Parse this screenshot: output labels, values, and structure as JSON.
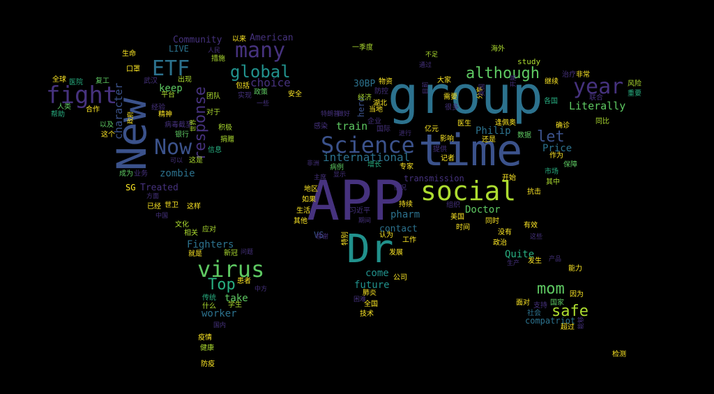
{
  "palette": {
    "background": "#000000",
    "dark_purple": "#46327e",
    "indigo": "#3b528b",
    "blue": "#365c8d",
    "teal_blue": "#2c728e",
    "teal": "#21918c",
    "green_teal": "#28ae80",
    "green": "#5ec962",
    "lime": "#addc30",
    "yellow": "#fde725",
    "deep": "#440154"
  },
  "words": [
    {
      "text": "APP",
      "color": "#46327e"
    },
    {
      "text": "group",
      "color": "#2c728e"
    },
    {
      "text": "time",
      "color": "#3b528b"
    },
    {
      "text": "New",
      "color": "#3b528b"
    },
    {
      "text": "Dr",
      "color": "#21918c"
    },
    {
      "text": "social",
      "color": "#addc30"
    },
    {
      "text": "fight",
      "color": "#46327e"
    },
    {
      "text": "Science",
      "color": "#3b528b"
    },
    {
      "text": "virus",
      "color": "#5ec962"
    },
    {
      "text": "year",
      "color": "#46327e"
    },
    {
      "text": "many",
      "color": "#46327e"
    },
    {
      "text": "ETF",
      "color": "#2c728e"
    },
    {
      "text": "Now",
      "color": "#3b528b"
    },
    {
      "text": "global",
      "color": "#21918c"
    },
    {
      "text": "although",
      "color": "#5ec962"
    },
    {
      "text": "safe",
      "color": "#addc30"
    },
    {
      "text": "mom",
      "color": "#5ec962"
    },
    {
      "text": "let",
      "color": "#3b528b"
    },
    {
      "text": "Top",
      "color": "#28ae80"
    },
    {
      "text": "response",
      "color": "#46327e"
    },
    {
      "text": "character",
      "color": "#3b528b"
    },
    {
      "text": "choice",
      "color": "#46327e"
    },
    {
      "text": "Literally",
      "color": "#5ec962"
    },
    {
      "text": "international",
      "color": "#2c728e"
    },
    {
      "text": "keep",
      "color": "#5ec962"
    },
    {
      "text": "train",
      "color": "#5ec962"
    },
    {
      "text": "Philip",
      "color": "#2c728e"
    },
    {
      "text": "Price",
      "color": "#2c728e"
    },
    {
      "text": "Doctor",
      "color": "#5ec962"
    },
    {
      "text": "zombie",
      "color": "#2c728e"
    },
    {
      "text": "future",
      "color": "#21918c"
    },
    {
      "text": "take",
      "color": "#5ec962"
    },
    {
      "text": "worker",
      "color": "#2c728e"
    },
    {
      "text": "Fighters",
      "color": "#2c728e"
    },
    {
      "text": "pharm",
      "color": "#2c728e"
    },
    {
      "text": "Quite",
      "color": "#28ae80"
    },
    {
      "text": "come",
      "color": "#21918c"
    },
    {
      "text": "contact",
      "color": "#2c728e"
    },
    {
      "text": "30BP",
      "color": "#2c728e"
    },
    {
      "text": "compatriot",
      "color": "#2c728e"
    },
    {
      "text": "transmission",
      "color": "#46327e"
    },
    {
      "text": "Community",
      "color": "#46327e"
    },
    {
      "text": "American",
      "color": "#46327e"
    },
    {
      "text": "Treated",
      "color": "#46327e"
    },
    {
      "text": "LIVE",
      "color": "#2c728e"
    },
    {
      "text": "hero",
      "color": "#3b528b"
    },
    {
      "text": "study",
      "color": "#addc30"
    },
    {
      "text": "SG",
      "color": "#fde725"
    },
    {
      "text": "VS",
      "color": "#3b528b"
    },
    {
      "text": "一季度",
      "color": "#addc30"
    },
    {
      "text": "海外",
      "color": "#addc30"
    },
    {
      "text": "不足",
      "color": "#addc30"
    },
    {
      "text": "通过",
      "color": "#46327e"
    },
    {
      "text": "生命",
      "color": "#fde725"
    },
    {
      "text": "以来",
      "color": "#fde725"
    },
    {
      "text": "人民",
      "color": "#46327e"
    },
    {
      "text": "措施",
      "color": "#addc30"
    },
    {
      "text": "口罩",
      "color": "#fde725"
    },
    {
      "text": "全球",
      "color": "#fde725"
    },
    {
      "text": "医院",
      "color": "#28ae80"
    },
    {
      "text": "复工",
      "color": "#5ec962"
    },
    {
      "text": "武汉",
      "color": "#46327e"
    },
    {
      "text": "出现",
      "color": "#addc30"
    },
    {
      "text": "包括",
      "color": "#fde725"
    },
    {
      "text": "政策",
      "color": "#5ec962"
    },
    {
      "text": "安全",
      "color": "#fde725"
    },
    {
      "text": "团队",
      "color": "#addc30"
    },
    {
      "text": "实现",
      "color": "#46327e"
    },
    {
      "text": "一些",
      "color": "#46327e"
    },
    {
      "text": "人类",
      "color": "#5ec962"
    },
    {
      "text": "合作",
      "color": "#fde725"
    },
    {
      "text": "帮助",
      "color": "#28ae80"
    },
    {
      "text": "经济",
      "color": "#addc30"
    },
    {
      "text": "物资",
      "color": "#fde725"
    },
    {
      "text": "防控",
      "color": "#46327e"
    },
    {
      "text": "湖北",
      "color": "#fde725"
    },
    {
      "text": "当地",
      "color": "#fde725"
    },
    {
      "text": "对于",
      "color": "#addc30"
    },
    {
      "text": "精神",
      "color": "#fde725"
    },
    {
      "text": "经验",
      "color": "#46327e"
    },
    {
      "text": "以及",
      "color": "#5ec962"
    },
    {
      "text": "这个",
      "color": "#fde725"
    },
    {
      "text": "病毒截至",
      "color": "#46327e"
    },
    {
      "text": "积极",
      "color": "#addc30"
    },
    {
      "text": "平台",
      "color": "#addc30"
    },
    {
      "text": "银行",
      "color": "#5ec962"
    },
    {
      "text": "世界",
      "color": "#addc30"
    },
    {
      "text": "捐赠",
      "color": "#addc30"
    },
    {
      "text": "信息",
      "color": "#28ae80"
    },
    {
      "text": "可以",
      "color": "#46327e"
    },
    {
      "text": "这是",
      "color": "#addc30"
    },
    {
      "text": "成为",
      "color": "#5ec962"
    },
    {
      "text": "业务",
      "color": "#46327e"
    },
    {
      "text": "方面",
      "color": "#46327e"
    },
    {
      "text": "已经",
      "color": "#fde725"
    },
    {
      "text": "世卫",
      "color": "#fde725"
    },
    {
      "text": "这样",
      "color": "#fde725"
    },
    {
      "text": "中国",
      "color": "#46327e"
    },
    {
      "text": "文化",
      "color": "#addc30"
    },
    {
      "text": "应对",
      "color": "#addc30"
    },
    {
      "text": "相关",
      "color": "#addc30"
    },
    {
      "text": "就是",
      "color": "#fde725"
    },
    {
      "text": "新冠",
      "color": "#addc30"
    },
    {
      "text": "问题",
      "color": "#46327e"
    },
    {
      "text": "患者",
      "color": "#fde725"
    },
    {
      "text": "中方",
      "color": "#46327e"
    },
    {
      "text": "传统",
      "color": "#28ae80"
    },
    {
      "text": "学生",
      "color": "#addc30"
    },
    {
      "text": "什么",
      "color": "#addc30"
    },
    {
      "text": "国内",
      "color": "#46327e"
    },
    {
      "text": "疫情",
      "color": "#fde725"
    },
    {
      "text": "健康",
      "color": "#addc30"
    },
    {
      "text": "防疫",
      "color": "#fde725"
    },
    {
      "text": "大家",
      "color": "#fde725"
    },
    {
      "text": "目前",
      "color": "#46327e"
    },
    {
      "text": "需要",
      "color": "#fde725"
    },
    {
      "text": "很多",
      "color": "#46327e"
    },
    {
      "text": "分享",
      "color": "#fde725"
    },
    {
      "text": "英国",
      "color": "#46327e"
    },
    {
      "text": "开展",
      "color": "#46327e"
    },
    {
      "text": "各国",
      "color": "#28ae80"
    },
    {
      "text": "继续",
      "color": "#fde725"
    },
    {
      "text": "治疗",
      "color": "#46327e"
    },
    {
      "text": "非常",
      "color": "#fde725"
    },
    {
      "text": "风险",
      "color": "#addc30"
    },
    {
      "text": "重要",
      "color": "#28ae80"
    },
    {
      "text": "联合",
      "color": "#46327e"
    },
    {
      "text": "同比",
      "color": "#addc30"
    },
    {
      "text": "确诊",
      "color": "#fde725"
    },
    {
      "text": "逢佩奥",
      "color": "#fde725"
    },
    {
      "text": "还是",
      "color": "#fde725"
    },
    {
      "text": "数据",
      "color": "#5ec962"
    },
    {
      "text": "作为",
      "color": "#fde725"
    },
    {
      "text": "保障",
      "color": "#5ec962"
    },
    {
      "text": "市场",
      "color": "#28ae80"
    },
    {
      "text": "其中",
      "color": "#addc30"
    },
    {
      "text": "开始",
      "color": "#fde725"
    },
    {
      "text": "抗击",
      "color": "#fde725"
    },
    {
      "text": "感染",
      "color": "#46327e"
    },
    {
      "text": "做好",
      "color": "#46327e"
    },
    {
      "text": "企业",
      "color": "#46327e"
    },
    {
      "text": "国际",
      "color": "#46327e"
    },
    {
      "text": "进行",
      "color": "#46327e"
    },
    {
      "text": "亿元",
      "color": "#fde725"
    },
    {
      "text": "影响",
      "color": "#fde725"
    },
    {
      "text": "医生",
      "color": "#fde725"
    },
    {
      "text": "提供",
      "color": "#46327e"
    },
    {
      "text": "记者",
      "color": "#fde725"
    },
    {
      "text": "非洲",
      "color": "#46327e"
    },
    {
      "text": "病例",
      "color": "#5ec962"
    },
    {
      "text": "增长",
      "color": "#28ae80"
    },
    {
      "text": "专家",
      "color": "#fde725"
    },
    {
      "text": "主席",
      "color": "#46327e"
    },
    {
      "text": "显示",
      "color": "#46327e"
    },
    {
      "text": "地区",
      "color": "#fde725"
    },
    {
      "text": "如果",
      "color": "#fde725"
    },
    {
      "text": "情况",
      "color": "#46327e"
    },
    {
      "text": "持续",
      "color": "#fde725"
    },
    {
      "text": "组织",
      "color": "#46327e"
    },
    {
      "text": "生活",
      "color": "#fde725"
    },
    {
      "text": "习近平",
      "color": "#46327e"
    },
    {
      "text": "美国",
      "color": "#fde725"
    },
    {
      "text": "同时",
      "color": "#fde725"
    },
    {
      "text": "其他",
      "color": "#fde725"
    },
    {
      "text": "期间",
      "color": "#46327e"
    },
    {
      "text": "时间",
      "color": "#fde725"
    },
    {
      "text": "有效",
      "color": "#fde725"
    },
    {
      "text": "认为",
      "color": "#fde725"
    },
    {
      "text": "没有",
      "color": "#fde725"
    },
    {
      "text": "工作",
      "color": "#fde725"
    },
    {
      "text": "政治",
      "color": "#fde725"
    },
    {
      "text": "这些",
      "color": "#46327e"
    },
    {
      "text": "发展",
      "color": "#fde725"
    },
    {
      "text": "特别",
      "color": "#fde725"
    },
    {
      "text": "发生",
      "color": "#fde725"
    },
    {
      "text": "生产",
      "color": "#46327e"
    },
    {
      "text": "产品",
      "color": "#46327e"
    },
    {
      "text": "能力",
      "color": "#fde725"
    },
    {
      "text": "公司",
      "color": "#fde725"
    },
    {
      "text": "肺炎",
      "color": "#fde725"
    },
    {
      "text": "困难",
      "color": "#46327e"
    },
    {
      "text": "全国",
      "color": "#fde725"
    },
    {
      "text": "因为",
      "color": "#fde725"
    },
    {
      "text": "面对",
      "color": "#fde725"
    },
    {
      "text": "支持",
      "color": "#46327e"
    },
    {
      "text": "国家",
      "color": "#5ec962"
    },
    {
      "text": "社会",
      "color": "#2c728e"
    },
    {
      "text": "超过",
      "color": "#fde725"
    },
    {
      "text": "技术",
      "color": "#fde725"
    },
    {
      "text": "检测",
      "color": "#fde725"
    },
    {
      "text": "感谢",
      "color": "#46327e"
    },
    {
      "text": "政府",
      "color": "#fde725"
    },
    {
      "text": "能够",
      "color": "#46327e"
    },
    {
      "text": "特朗普",
      "color": "#46327e"
    }
  ]
}
